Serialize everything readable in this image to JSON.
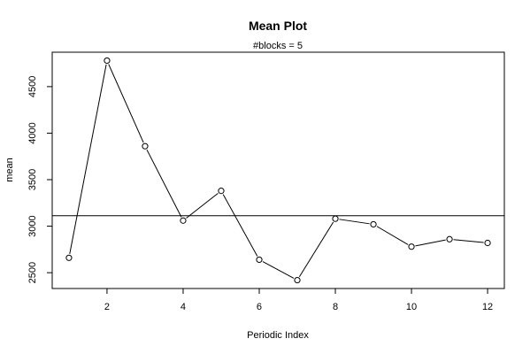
{
  "chart_data": {
    "type": "line",
    "title": "Mean Plot",
    "subtitle": "#blocks =  5",
    "xlabel": "Periodic Index",
    "ylabel": "mean",
    "x": [
      1,
      2,
      3,
      4,
      5,
      6,
      7,
      8,
      9,
      10,
      11,
      12
    ],
    "values": [
      2660,
      4780,
      3860,
      3060,
      3380,
      2640,
      2420,
      3080,
      3020,
      2780,
      2860,
      2820
    ],
    "xticks": [
      2,
      4,
      6,
      8,
      10,
      12
    ],
    "yticks": [
      2500,
      3000,
      3500,
      4000,
      4500
    ],
    "xtick_labels": [
      "2",
      "4",
      "6",
      "8",
      "10",
      "12"
    ],
    "ytick_labels": [
      "2500",
      "3000",
      "3500",
      "4000",
      "4500"
    ],
    "xlim": [
      0.56,
      12.44
    ],
    "ylim": [
      2330,
      4870
    ],
    "hline": 3112,
    "marker": "open-circle",
    "grid": false,
    "colors": {
      "line": "#000000",
      "marker": "#000000",
      "background": "#ffffff"
    }
  }
}
